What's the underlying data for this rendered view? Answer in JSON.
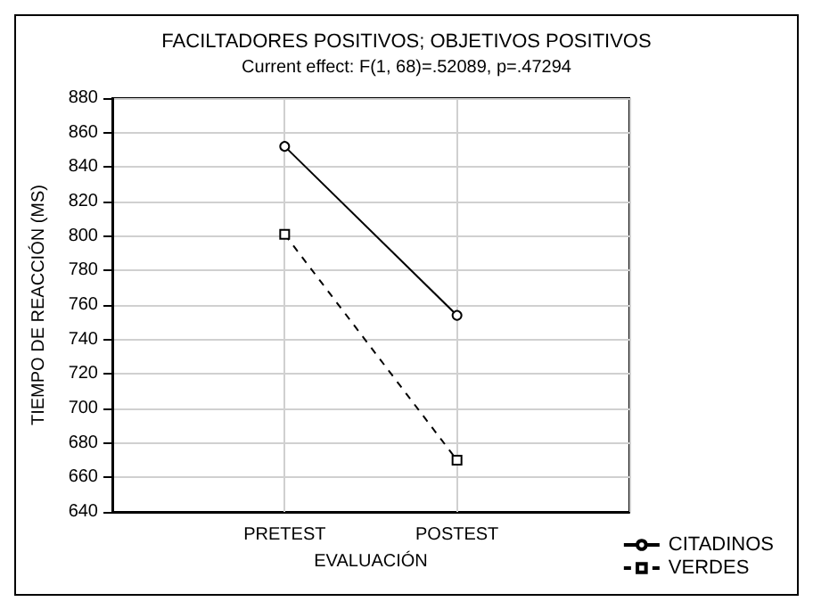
{
  "chart_data": {
    "type": "line",
    "title": "FACILTADORES POSITIVOS; OBJETIVOS POSITIVOS",
    "subtitle": "Current effect: F(1, 68)=.52089, p=.47294",
    "xlabel": "EVALUACIÓN",
    "ylabel": "TIEMPO DE REACCIÓN (MS)",
    "categories": [
      null,
      "PRETEST",
      "POSTEST",
      null
    ],
    "series": [
      {
        "name": "CITADINOS",
        "color": "#000000",
        "values": [
          null,
          852,
          754,
          null
        ],
        "marker": "circle",
        "line_style": "solid"
      },
      {
        "name": "VERDES",
        "color": "#000000",
        "values": [
          null,
          801,
          670,
          null
        ],
        "marker": "square",
        "line_style": "dashed"
      }
    ],
    "ylim": [
      640,
      880
    ],
    "yticks": [
      640,
      660,
      680,
      700,
      720,
      740,
      760,
      780,
      800,
      820,
      840,
      860,
      880
    ],
    "grid": true,
    "legend": "bottom right"
  }
}
